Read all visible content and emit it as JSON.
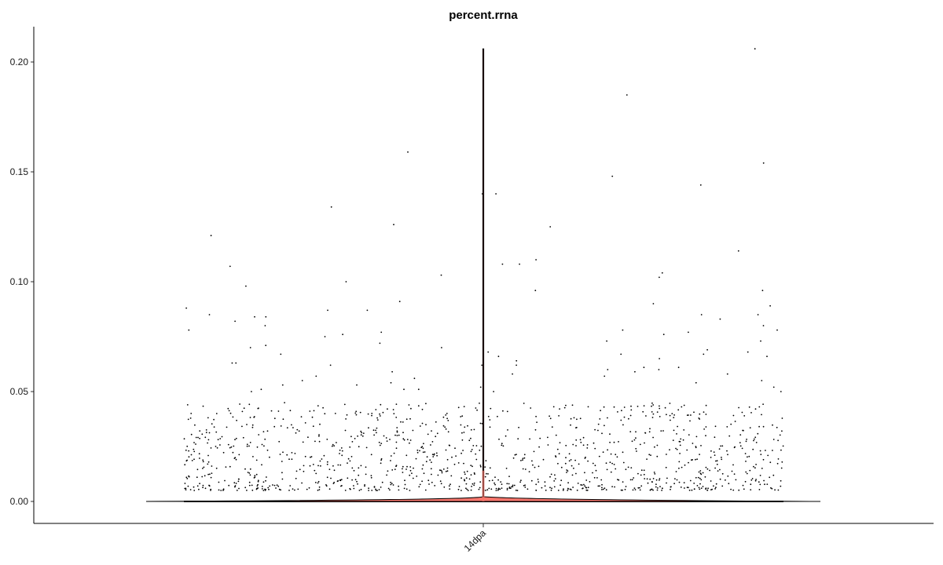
{
  "chart_data": {
    "type": "violin",
    "title": "percent.rrna",
    "xlabel": "",
    "ylabel": "",
    "categories": [
      "14dpa"
    ],
    "ylim": [
      -0.01,
      0.217
    ],
    "yticks": [
      0.0,
      0.05,
      0.1,
      0.15,
      0.2
    ],
    "ytick_labels": [
      "0.00",
      "0.05",
      "0.10",
      "0.15",
      "0.20"
    ],
    "grid": false,
    "legend": "none",
    "violin": {
      "fill": "#F8766D",
      "outline": "#000000",
      "max": 0.206,
      "median": 0.0,
      "n_cells": 1400
    },
    "outliers": [
      0.206,
      0.185,
      0.159,
      0.154,
      0.148,
      0.144,
      0.14,
      0.14,
      0.134,
      0.126,
      0.125,
      0.121,
      0.114,
      0.11,
      0.108,
      0.108,
      0.107,
      0.104,
      0.103,
      0.102,
      0.1,
      0.098,
      0.096,
      0.096,
      0.091,
      0.09,
      0.089,
      0.088,
      0.087,
      0.087,
      0.085,
      0.085,
      0.085,
      0.084,
      0.084,
      0.083,
      0.082,
      0.08,
      0.08,
      0.078,
      0.078,
      0.078,
      0.077,
      0.077,
      0.076,
      0.076,
      0.075,
      0.073,
      0.073,
      0.072,
      0.071,
      0.07,
      0.07,
      0.069,
      0.068,
      0.068,
      0.067,
      0.067,
      0.067,
      0.066,
      0.066,
      0.065,
      0.064,
      0.063,
      0.063,
      0.062,
      0.062,
      0.062,
      0.061,
      0.061,
      0.06,
      0.06,
      0.059,
      0.059,
      0.058,
      0.058,
      0.057,
      0.057,
      0.056,
      0.055,
      0.055,
      0.054,
      0.054,
      0.053,
      0.053,
      0.052,
      0.052,
      0.051,
      0.051,
      0.051,
      0.05,
      0.05,
      0.05
    ],
    "bulk_range": [
      0.005,
      0.045
    ],
    "colors": {
      "points": "#000000",
      "axis": "#000000",
      "violin": "#F8766D"
    }
  }
}
